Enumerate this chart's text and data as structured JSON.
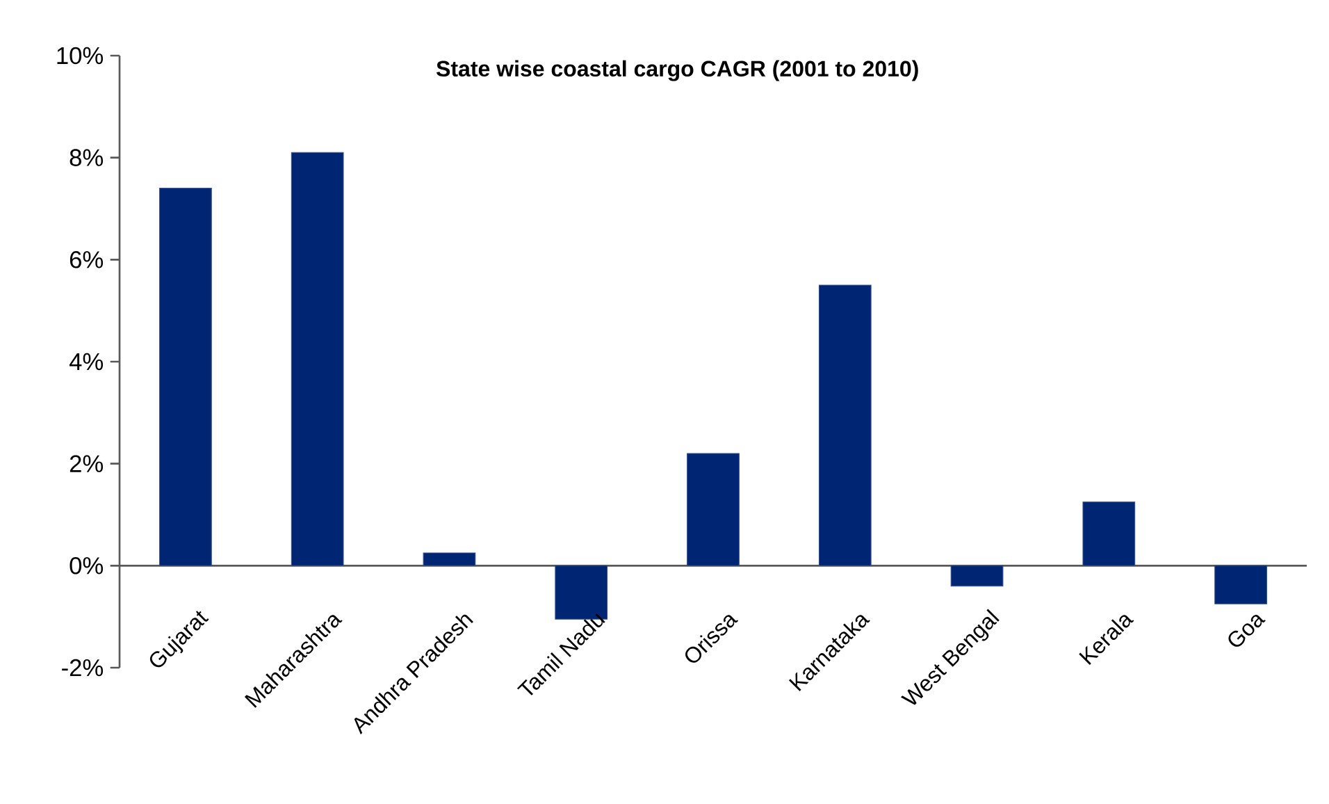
{
  "chart_data": {
    "type": "bar",
    "title": "State wise coastal cargo CAGR (2001 to 2010)",
    "categories": [
      "Gujarat",
      "Maharashtra",
      "Andhra Pradesh",
      "Tamil Nadu",
      "Orissa",
      "Karnataka",
      "West Bengal",
      "Kerala",
      "Goa"
    ],
    "values": [
      7.4,
      8.1,
      0.25,
      -1.05,
      2.2,
      5.5,
      -0.4,
      1.25,
      -0.75
    ],
    "color": "#002673",
    "ylim": [
      -2,
      10
    ],
    "yticks": [
      {
        "value": -2,
        "label": "-2%"
      },
      {
        "value": 0,
        "label": "0%"
      },
      {
        "value": 2,
        "label": "2%"
      },
      {
        "value": 4,
        "label": "4%"
      },
      {
        "value": 6,
        "label": "6%"
      },
      {
        "value": 8,
        "label": "8%"
      },
      {
        "value": 10,
        "label": "10%"
      }
    ]
  }
}
